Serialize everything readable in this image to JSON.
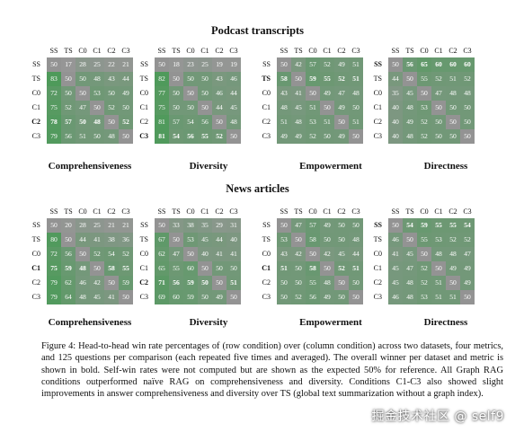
{
  "columns": [
    "SS",
    "TS",
    "C0",
    "C1",
    "C2",
    "C3"
  ],
  "rows": [
    "SS",
    "TS",
    "C0",
    "C1",
    "C2",
    "C3"
  ],
  "colors": {
    "self": "#939393",
    "cell_base": "#57a061"
  },
  "sections": [
    {
      "title": "Podcast transcripts",
      "panels": [
        {
          "metric": "Comprehensiveness",
          "bold_rows": [
            "C2"
          ],
          "matrix": [
            [
              50,
              17,
              28,
              25,
              22,
              21
            ],
            [
              83,
              50,
              50,
              48,
              43,
              44
            ],
            [
              72,
              50,
              50,
              53,
              50,
              49
            ],
            [
              75,
              52,
              47,
              50,
              52,
              50
            ],
            [
              78,
              57,
              50,
              48,
              50,
              52
            ],
            [
              79,
              56,
              51,
              50,
              48,
              50
            ]
          ],
          "bold_cells": [
            [
              4,
              0
            ],
            [
              4,
              1
            ],
            [
              4,
              2
            ],
            [
              4,
              3
            ],
            [
              4,
              5
            ]
          ]
        },
        {
          "metric": "Diversity",
          "bold_rows": [
            "C3"
          ],
          "matrix": [
            [
              50,
              18,
              23,
              25,
              19,
              19
            ],
            [
              82,
              50,
              50,
              50,
              43,
              46
            ],
            [
              77,
              50,
              50,
              50,
              46,
              44
            ],
            [
              75,
              50,
              50,
              50,
              44,
              45
            ],
            [
              81,
              57,
              54,
              56,
              50,
              48
            ],
            [
              81,
              54,
              56,
              55,
              52,
              50
            ]
          ],
          "bold_cells": [
            [
              5,
              0
            ],
            [
              5,
              1
            ],
            [
              5,
              2
            ],
            [
              5,
              3
            ],
            [
              5,
              4
            ]
          ]
        },
        {
          "metric": "Empowerment",
          "bold_rows": [
            "TS"
          ],
          "matrix": [
            [
              50,
              42,
              57,
              52,
              49,
              51
            ],
            [
              58,
              50,
              59,
              55,
              52,
              51
            ],
            [
              43,
              41,
              50,
              49,
              47,
              48
            ],
            [
              48,
              45,
              51,
              50,
              49,
              50
            ],
            [
              51,
              48,
              53,
              51,
              50,
              51
            ],
            [
              49,
              49,
              52,
              50,
              49,
              50
            ]
          ],
          "bold_cells": [
            [
              1,
              0
            ],
            [
              1,
              2
            ],
            [
              1,
              3
            ],
            [
              1,
              4
            ],
            [
              1,
              5
            ]
          ]
        },
        {
          "metric": "Directness",
          "bold_rows": [
            "SS"
          ],
          "matrix": [
            [
              50,
              56,
              65,
              60,
              60,
              60
            ],
            [
              44,
              50,
              55,
              52,
              51,
              52
            ],
            [
              35,
              45,
              50,
              47,
              48,
              48
            ],
            [
              40,
              48,
              53,
              50,
              50,
              50
            ],
            [
              40,
              49,
              52,
              50,
              50,
              50
            ],
            [
              40,
              48,
              52,
              50,
              50,
              50
            ]
          ],
          "bold_cells": [
            [
              0,
              1
            ],
            [
              0,
              2
            ],
            [
              0,
              3
            ],
            [
              0,
              4
            ],
            [
              0,
              5
            ]
          ]
        }
      ]
    },
    {
      "title": "News articles",
      "panels": [
        {
          "metric": "Comprehensiveness",
          "bold_rows": [
            "C1"
          ],
          "matrix": [
            [
              50,
              20,
              28,
              25,
              21,
              21
            ],
            [
              80,
              50,
              44,
              41,
              38,
              36
            ],
            [
              72,
              56,
              50,
              52,
              54,
              52
            ],
            [
              75,
              59,
              48,
              50,
              58,
              55
            ],
            [
              79,
              62,
              46,
              42,
              50,
              59
            ],
            [
              79,
              64,
              48,
              45,
              41,
              50
            ]
          ],
          "bold_cells": [
            [
              3,
              0
            ],
            [
              3,
              1
            ],
            [
              3,
              2
            ],
            [
              3,
              4
            ],
            [
              3,
              5
            ]
          ]
        },
        {
          "metric": "Diversity",
          "bold_rows": [
            "C2"
          ],
          "matrix": [
            [
              50,
              33,
              38,
              35,
              29,
              31
            ],
            [
              67,
              50,
              53,
              45,
              44,
              40
            ],
            [
              62,
              47,
              50,
              40,
              41,
              41
            ],
            [
              65,
              55,
              60,
              50,
              50,
              50
            ],
            [
              71,
              56,
              59,
              50,
              50,
              51
            ],
            [
              69,
              60,
              59,
              50,
              49,
              50
            ]
          ],
          "bold_cells": [
            [
              4,
              0
            ],
            [
              4,
              1
            ],
            [
              4,
              2
            ],
            [
              4,
              3
            ],
            [
              4,
              5
            ]
          ]
        },
        {
          "metric": "Empowerment",
          "bold_rows": [
            "C1"
          ],
          "matrix": [
            [
              50,
              47,
              57,
              49,
              50,
              50
            ],
            [
              53,
              50,
              58,
              50,
              50,
              48
            ],
            [
              43,
              42,
              50,
              42,
              45,
              44
            ],
            [
              51,
              50,
              58,
              50,
              52,
              51
            ],
            [
              50,
              50,
              55,
              48,
              50,
              50
            ],
            [
              50,
              52,
              56,
              49,
              50,
              50
            ]
          ],
          "bold_cells": [
            [
              3,
              0
            ],
            [
              3,
              2
            ],
            [
              3,
              4
            ],
            [
              3,
              5
            ]
          ]
        },
        {
          "metric": "Directness",
          "bold_rows": [
            "SS"
          ],
          "matrix": [
            [
              50,
              54,
              59,
              55,
              55,
              54
            ],
            [
              46,
              50,
              55,
              53,
              52,
              52
            ],
            [
              41,
              45,
              50,
              48,
              48,
              47
            ],
            [
              45,
              47,
              52,
              50,
              49,
              49
            ],
            [
              45,
              48,
              52,
              51,
              50,
              49
            ],
            [
              46,
              48,
              53,
              51,
              51,
              50
            ]
          ],
          "bold_cells": [
            [
              0,
              1
            ],
            [
              0,
              2
            ],
            [
              0,
              3
            ],
            [
              0,
              4
            ],
            [
              0,
              5
            ]
          ]
        }
      ]
    }
  ],
  "caption": "Figure 4: Head-to-head win rate percentages of (row condition) over (column condition) across two datasets, four metrics, and 125 questions per comparison (each repeated five times and averaged). The overall winner per dataset and metric is shown in bold. Self-win rates were not computed but are shown as the expected 50% for reference. All Graph RAG conditions outperformed naïve RAG on comprehensiveness and diversity. Conditions C1-C3 also showed slight improvements in answer comprehensiveness and diversity over TS (global text summarization without a graph index).",
  "watermark": "掘金技术社区 @ self9"
}
